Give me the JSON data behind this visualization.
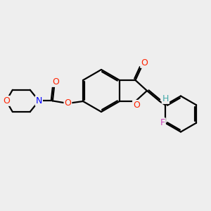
{
  "bg_color": "#eeeeee",
  "line_color": "#000000",
  "bond_width": 1.6,
  "atom_colors": {
    "O": "#ff2200",
    "N": "#0000ff",
    "F": "#cc44bb",
    "H": "#44aaaa"
  },
  "font_size": 9
}
